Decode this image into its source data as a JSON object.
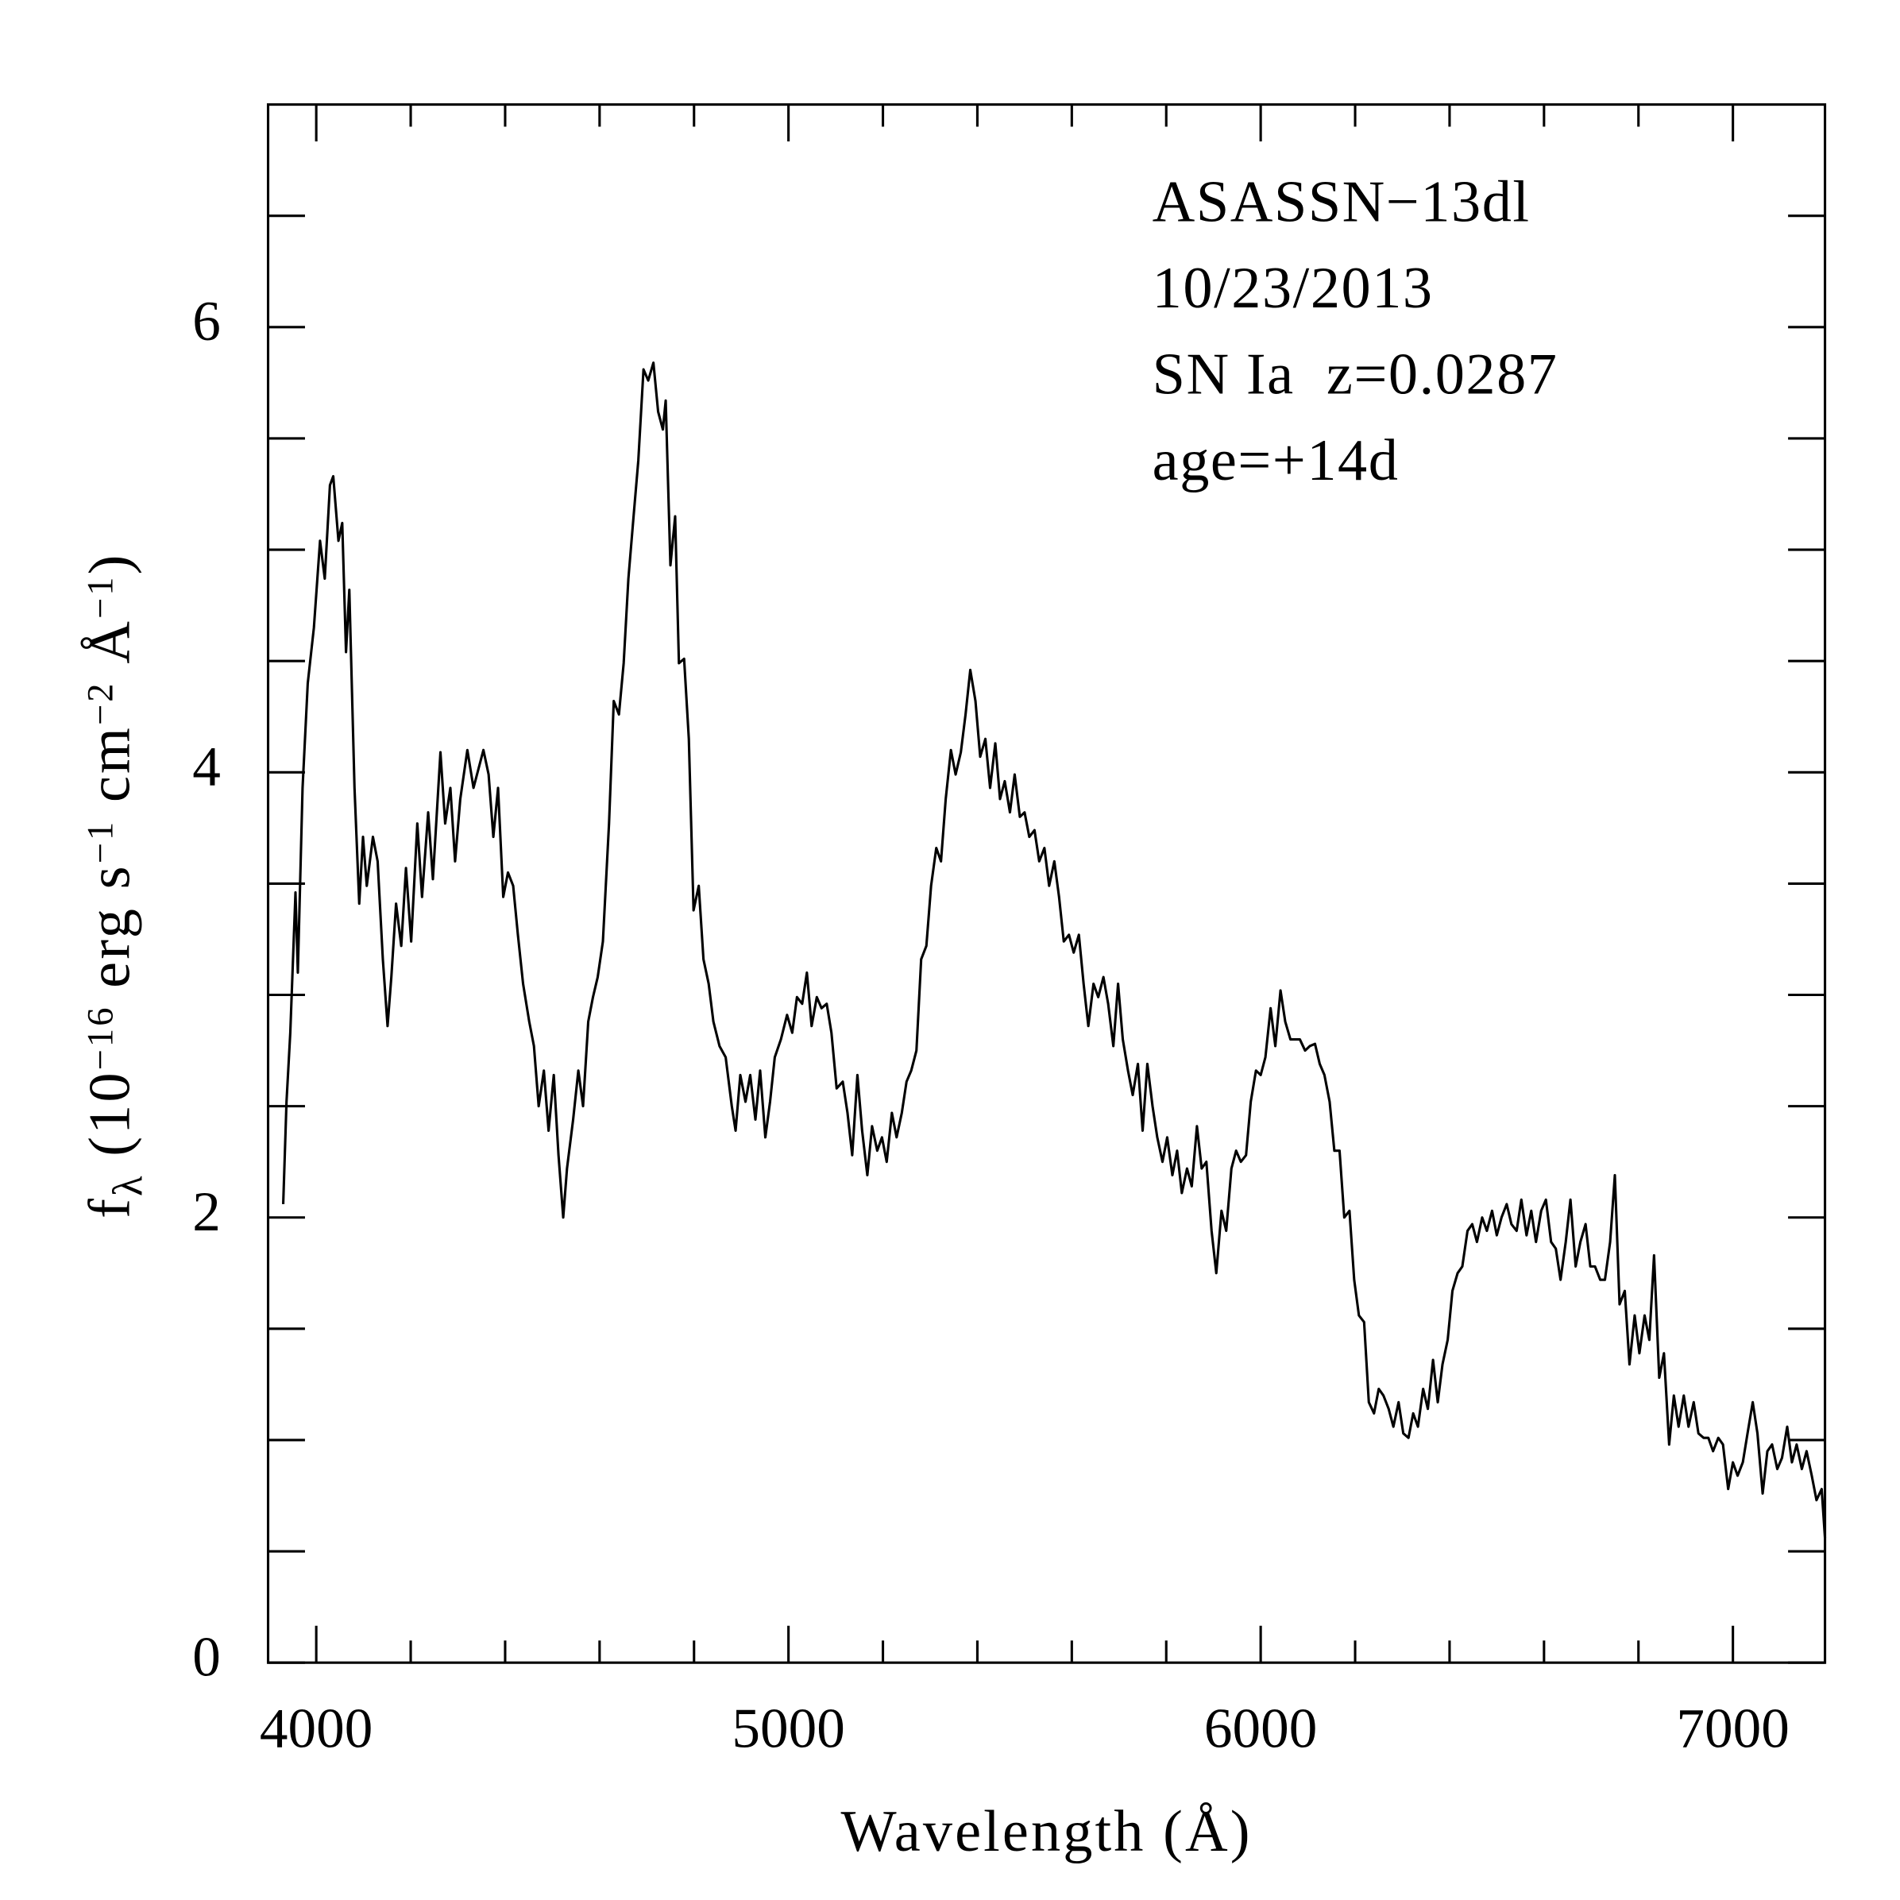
{
  "chart_data": {
    "type": "line",
    "xlabel": "Wavelength (Å)",
    "ylabel": [
      {
        "text": "f"
      },
      {
        "text": "λ",
        "sub": true
      },
      {
        "text": " (10"
      },
      {
        "text": "−16",
        "sup": true
      },
      {
        "text": " erg s"
      },
      {
        "text": "−1",
        "sup": true
      },
      {
        "text": " cm"
      },
      {
        "text": "−2",
        "sup": true
      },
      {
        "text": " Å"
      },
      {
        "text": "−1",
        "sup": true
      },
      {
        "text": ")"
      }
    ],
    "annotations": [
      "ASASSN−13dl",
      "10/23/2013",
      "SN Ia  z=0.0287",
      "age=+14d"
    ],
    "xlim": [
      3898,
      7195
    ],
    "ylim": [
      0,
      7
    ],
    "xticks": [
      4000,
      5000,
      6000,
      7000
    ],
    "xticks_minor": [
      4200,
      4400,
      4600,
      4800,
      5200,
      5400,
      5600,
      5800,
      6200,
      6400,
      6600,
      6800
    ],
    "yticks": [
      0,
      2,
      4,
      6
    ],
    "yticks_minor": [
      0.5,
      1,
      1.5,
      2.5,
      3,
      3.5,
      4.5,
      5,
      5.5,
      6.5
    ],
    "color": "#000000",
    "x": [
      3930,
      3937,
      3945,
      3956,
      3961,
      3971,
      3982,
      3995,
      4008,
      4018,
      4029,
      4036,
      4047,
      4055,
      4063,
      4070,
      4081,
      4091,
      4099,
      4107,
      4120,
      4130,
      4141,
      4151,
      4159,
      4169,
      4180,
      4190,
      4201,
      4214,
      4224,
      4237,
      4247,
      4263,
      4273,
      4284,
      4294,
      4305,
      4320,
      4333,
      4354,
      4365,
      4375,
      4385,
      4396,
      4406,
      4417,
      4427,
      4438,
      4451,
      4461,
      4471,
      4482,
      4492,
      4503,
      4513,
      4523,
      4531,
      4544,
      4555,
      4565,
      4576,
      4586,
      4596,
      4607,
      4620,
      4630,
      4641,
      4651,
      4661,
      4672,
      4682,
      4693,
      4703,
      4714,
      4724,
      4734,
      4740,
      4750,
      4760,
      4768,
      4779,
      4789,
      4799,
      4810,
      4820,
      4831,
      4841,
      4854,
      4867,
      4880,
      4888,
      4898,
      4909,
      4919,
      4930,
      4940,
      4951,
      4961,
      4971,
      4984,
      4997,
      5008,
      5018,
      5029,
      5039,
      5049,
      5060,
      5070,
      5081,
      5091,
      5102,
      5115,
      5125,
      5135,
      5146,
      5156,
      5167,
      5177,
      5188,
      5198,
      5208,
      5219,
      5229,
      5240,
      5250,
      5260,
      5271,
      5281,
      5292,
      5302,
      5313,
      5323,
      5333,
      5344,
      5354,
      5365,
      5375,
      5385,
      5396,
      5406,
      5417,
      5427,
      5438,
      5448,
      5458,
      5469,
      5479,
      5490,
      5500,
      5510,
      5521,
      5531,
      5542,
      5552,
      5563,
      5573,
      5583,
      5594,
      5604,
      5615,
      5625,
      5635,
      5646,
      5656,
      5667,
      5677,
      5688,
      5698,
      5708,
      5719,
      5729,
      5740,
      5750,
      5760,
      5771,
      5781,
      5792,
      5802,
      5813,
      5823,
      5833,
      5844,
      5854,
      5865,
      5875,
      5885,
      5896,
      5906,
      5917,
      5927,
      5938,
      5948,
      5958,
      5969,
      5979,
      5990,
      6000,
      6010,
      6021,
      6031,
      6042,
      6052,
      6063,
      6073,
      6083,
      6094,
      6104,
      6115,
      6125,
      6135,
      6146,
      6156,
      6167,
      6177,
      6188,
      6198,
      6208,
      6219,
      6229,
      6240,
      6250,
      6260,
      6271,
      6281,
      6292,
      6302,
      6313,
      6323,
      6333,
      6344,
      6354,
      6365,
      6375,
      6385,
      6396,
      6406,
      6417,
      6427,
      6438,
      6448,
      6458,
      6469,
      6479,
      6490,
      6500,
      6510,
      6521,
      6531,
      6542,
      6552,
      6563,
      6573,
      6583,
      6594,
      6604,
      6615,
      6625,
      6635,
      6646,
      6656,
      6667,
      6677,
      6688,
      6698,
      6708,
      6719,
      6729,
      6740,
      6750,
      6760,
      6771,
      6781,
      6792,
      6802,
      6813,
      6823,
      6833,
      6844,
      6854,
      6865,
      6875,
      6885,
      6896,
      6906,
      6917,
      6927,
      6938,
      6948,
      6958,
      6969,
      6979,
      6990,
      7000,
      7010,
      7021,
      7031,
      7042,
      7052,
      7063,
      7073,
      7083,
      7094,
      7104,
      7115,
      7125,
      7135,
      7146,
      7156,
      7167,
      7177,
      7188,
      7195
    ],
    "values": [
      2.06,
      2.52,
      2.83,
      3.46,
      3.1,
      3.93,
      4.4,
      4.65,
      5.04,
      4.87,
      5.29,
      5.33,
      5.04,
      5.12,
      4.54,
      4.82,
      3.93,
      3.41,
      3.71,
      3.49,
      3.71,
      3.6,
      3.16,
      2.86,
      3.08,
      3.41,
      3.22,
      3.57,
      3.24,
      3.77,
      3.44,
      3.82,
      3.52,
      4.09,
      3.77,
      3.93,
      3.6,
      3.88,
      4.1,
      3.93,
      4.1,
      3.99,
      3.71,
      3.93,
      3.44,
      3.55,
      3.49,
      3.27,
      3.05,
      2.88,
      2.77,
      2.5,
      2.66,
      2.39,
      2.64,
      2.28,
      2.0,
      2.22,
      2.44,
      2.66,
      2.5,
      2.88,
      2.99,
      3.08,
      3.24,
      3.77,
      4.32,
      4.26,
      4.49,
      4.87,
      5.15,
      5.4,
      5.81,
      5.76,
      5.84,
      5.62,
      5.54,
      5.67,
      4.93,
      5.15,
      4.49,
      4.51,
      4.15,
      3.38,
      3.49,
      3.16,
      3.05,
      2.88,
      2.77,
      2.72,
      2.5,
      2.39,
      2.64,
      2.52,
      2.64,
      2.44,
      2.66,
      2.36,
      2.52,
      2.72,
      2.8,
      2.91,
      2.83,
      2.99,
      2.96,
      3.1,
      2.86,
      2.99,
      2.94,
      2.96,
      2.83,
      2.58,
      2.61,
      2.47,
      2.28,
      2.64,
      2.39,
      2.19,
      2.41,
      2.3,
      2.36,
      2.25,
      2.47,
      2.36,
      2.47,
      2.61,
      2.66,
      2.75,
      3.16,
      3.22,
      3.49,
      3.66,
      3.6,
      3.88,
      4.1,
      3.99,
      4.09,
      4.26,
      4.46,
      4.32,
      4.07,
      4.15,
      3.93,
      4.13,
      3.88,
      3.96,
      3.82,
      3.99,
      3.8,
      3.82,
      3.71,
      3.74,
      3.6,
      3.66,
      3.49,
      3.6,
      3.44,
      3.24,
      3.27,
      3.19,
      3.27,
      3.05,
      2.86,
      3.05,
      2.99,
      3.08,
      2.96,
      2.77,
      3.05,
      2.8,
      2.66,
      2.55,
      2.69,
      2.39,
      2.69,
      2.5,
      2.36,
      2.25,
      2.36,
      2.19,
      2.3,
      2.11,
      2.22,
      2.14,
      2.41,
      2.22,
      2.25,
      1.94,
      1.75,
      2.03,
      1.94,
      2.22,
      2.3,
      2.25,
      2.28,
      2.52,
      2.66,
      2.64,
      2.72,
      2.94,
      2.77,
      3.02,
      2.88,
      2.8,
      2.8,
      2.8,
      2.75,
      2.77,
      2.78,
      2.69,
      2.64,
      2.52,
      2.3,
      2.3,
      2.0,
      2.03,
      1.72,
      1.56,
      1.53,
      1.17,
      1.12,
      1.23,
      1.2,
      1.14,
      1.06,
      1.17,
      1.03,
      1.01,
      1.12,
      1.06,
      1.23,
      1.14,
      1.36,
      1.17,
      1.34,
      1.45,
      1.67,
      1.75,
      1.78,
      1.94,
      1.97,
      1.89,
      2.0,
      1.94,
      2.03,
      1.92,
      2.0,
      2.06,
      1.97,
      1.94,
      2.08,
      1.92,
      2.03,
      1.89,
      2.03,
      2.08,
      1.89,
      1.86,
      1.72,
      1.89,
      2.08,
      1.78,
      1.89,
      1.97,
      1.78,
      1.78,
      1.72,
      1.72,
      1.89,
      2.19,
      1.61,
      1.67,
      1.34,
      1.56,
      1.39,
      1.56,
      1.45,
      1.83,
      1.28,
      1.39,
      0.98,
      1.2,
      1.06,
      1.2,
      1.06,
      1.17,
      1.03,
      1.01,
      1.01,
      0.95,
      1.01,
      0.98,
      0.78,
      0.9,
      0.84,
      0.9,
      1.03,
      1.17,
      1.03,
      0.76,
      0.95,
      0.98,
      0.87,
      0.92,
      1.06,
      0.9,
      0.98,
      0.87,
      0.95,
      0.84,
      0.73,
      0.78,
      0.56
    ]
  }
}
